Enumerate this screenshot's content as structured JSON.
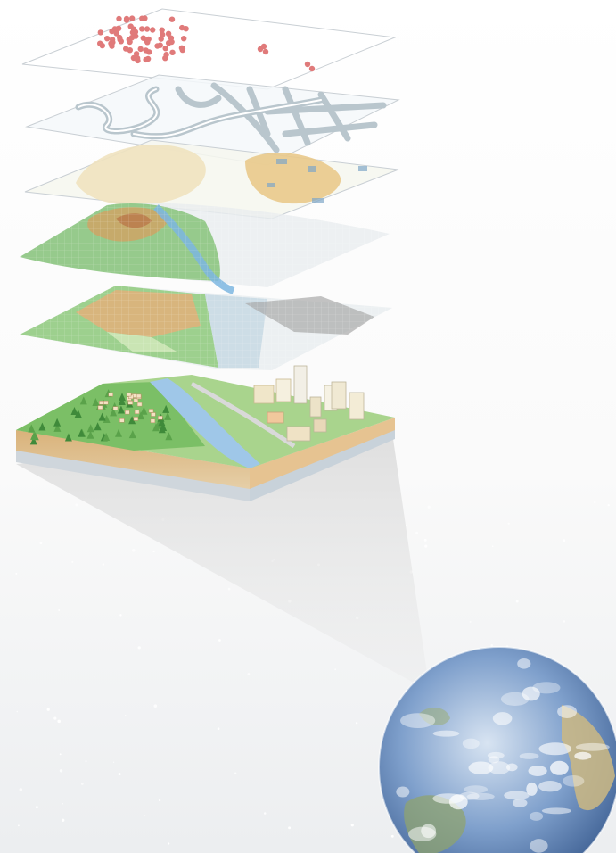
{
  "diagram": {
    "layers": [
      {
        "id": "points",
        "kind": "point-features",
        "color": "#e07a7a"
      },
      {
        "id": "roads",
        "kind": "street-network",
        "color": "#aebcc4"
      },
      {
        "id": "landuse",
        "kind": "parcels",
        "color": "#e8c68a"
      },
      {
        "id": "terrain",
        "kind": "elevation-grid",
        "color": "#7fbf6a"
      },
      {
        "id": "landcover",
        "kind": "landcover-grid",
        "color": "#e3b07a"
      },
      {
        "id": "reality",
        "kind": "3d-landscape-block",
        "color": "#9fcf8a"
      }
    ],
    "globe": {
      "kind": "earth-globe",
      "ocean": "#3a6fb0",
      "cloud": "#ffffff",
      "land": "#c9b377"
    },
    "background": {
      "top": "#ffffff",
      "bottom": "#eef0f2"
    }
  }
}
